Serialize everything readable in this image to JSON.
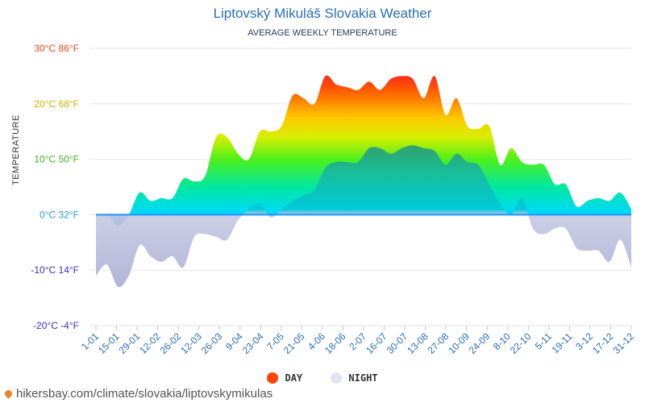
{
  "chart_data": {
    "type": "area",
    "title": "Liptovský Mikuláš Slovakia Weather",
    "subtitle": "AVERAGE WEEKLY TEMPERATURE",
    "ylabel": "TEMPERATURE",
    "ylim": [
      -20,
      30
    ],
    "yticks": [
      {
        "value": 30,
        "label": "30°C 86°F",
        "color": "#e8491d"
      },
      {
        "value": 20,
        "label": "20°C 68°F",
        "color": "#d4b000"
      },
      {
        "value": 10,
        "label": "10°C 50°F",
        "color": "#42b01e"
      },
      {
        "value": 0,
        "label": "0°C 32°F",
        "color": "#2a9bd6"
      },
      {
        "value": -10,
        "label": "-10°C 14°F",
        "color": "#3b2fc0"
      },
      {
        "value": -20,
        "label": "-20°C -4°F",
        "color": "#3b2fc0"
      }
    ],
    "xticks": [
      "1-01",
      "15-01",
      "29-01",
      "12-02",
      "26-02",
      "12-03",
      "26-03",
      "9-04",
      "23-04",
      "7-05",
      "21-05",
      "4-06",
      "18-06",
      "2-07",
      "16-07",
      "30-07",
      "13-08",
      "27-08",
      "10-09",
      "24-09",
      "8-10",
      "22-10",
      "5-11",
      "19-11",
      "3-12",
      "17-12",
      "31-12"
    ],
    "series": [
      {
        "name": "DAY",
        "values": [
          -0.5,
          0,
          -2,
          0,
          4,
          2.5,
          3,
          3,
          6.5,
          6,
          7,
          14,
          14,
          11,
          10,
          15,
          15,
          16,
          21.5,
          21,
          20,
          25,
          23.5,
          23,
          22.5,
          24,
          22.5,
          24.5,
          25,
          24.5,
          21,
          25,
          18,
          21,
          16,
          15.5,
          16,
          9,
          12,
          9.5,
          9,
          9,
          5.5,
          5.5,
          1.5,
          2.5,
          3,
          2.5,
          4,
          1
        ]
      },
      {
        "name": "NIGHT",
        "values": [
          -11,
          -9,
          -13,
          -11,
          -5.5,
          -7.5,
          -8.5,
          -7.5,
          -9.5,
          -4,
          -3.5,
          -4,
          -4.5,
          -1,
          1,
          2,
          -0.5,
          1,
          2.5,
          3.5,
          4.5,
          8.5,
          9.5,
          9.5,
          9.5,
          12,
          12,
          11,
          12,
          12.5,
          12,
          11.5,
          9,
          11,
          9.5,
          9,
          5.5,
          2,
          0,
          3,
          -2.5,
          -3.5,
          -2.5,
          -2.5,
          -6,
          -6.5,
          -6.5,
          -8.5,
          -4.5,
          -9.5
        ]
      }
    ]
  },
  "legend": {
    "day_label": "DAY",
    "night_label": "NIGHT"
  },
  "footer": {
    "source_url": "hikersbay.com/climate/slovakia/liptovskymikulas"
  }
}
